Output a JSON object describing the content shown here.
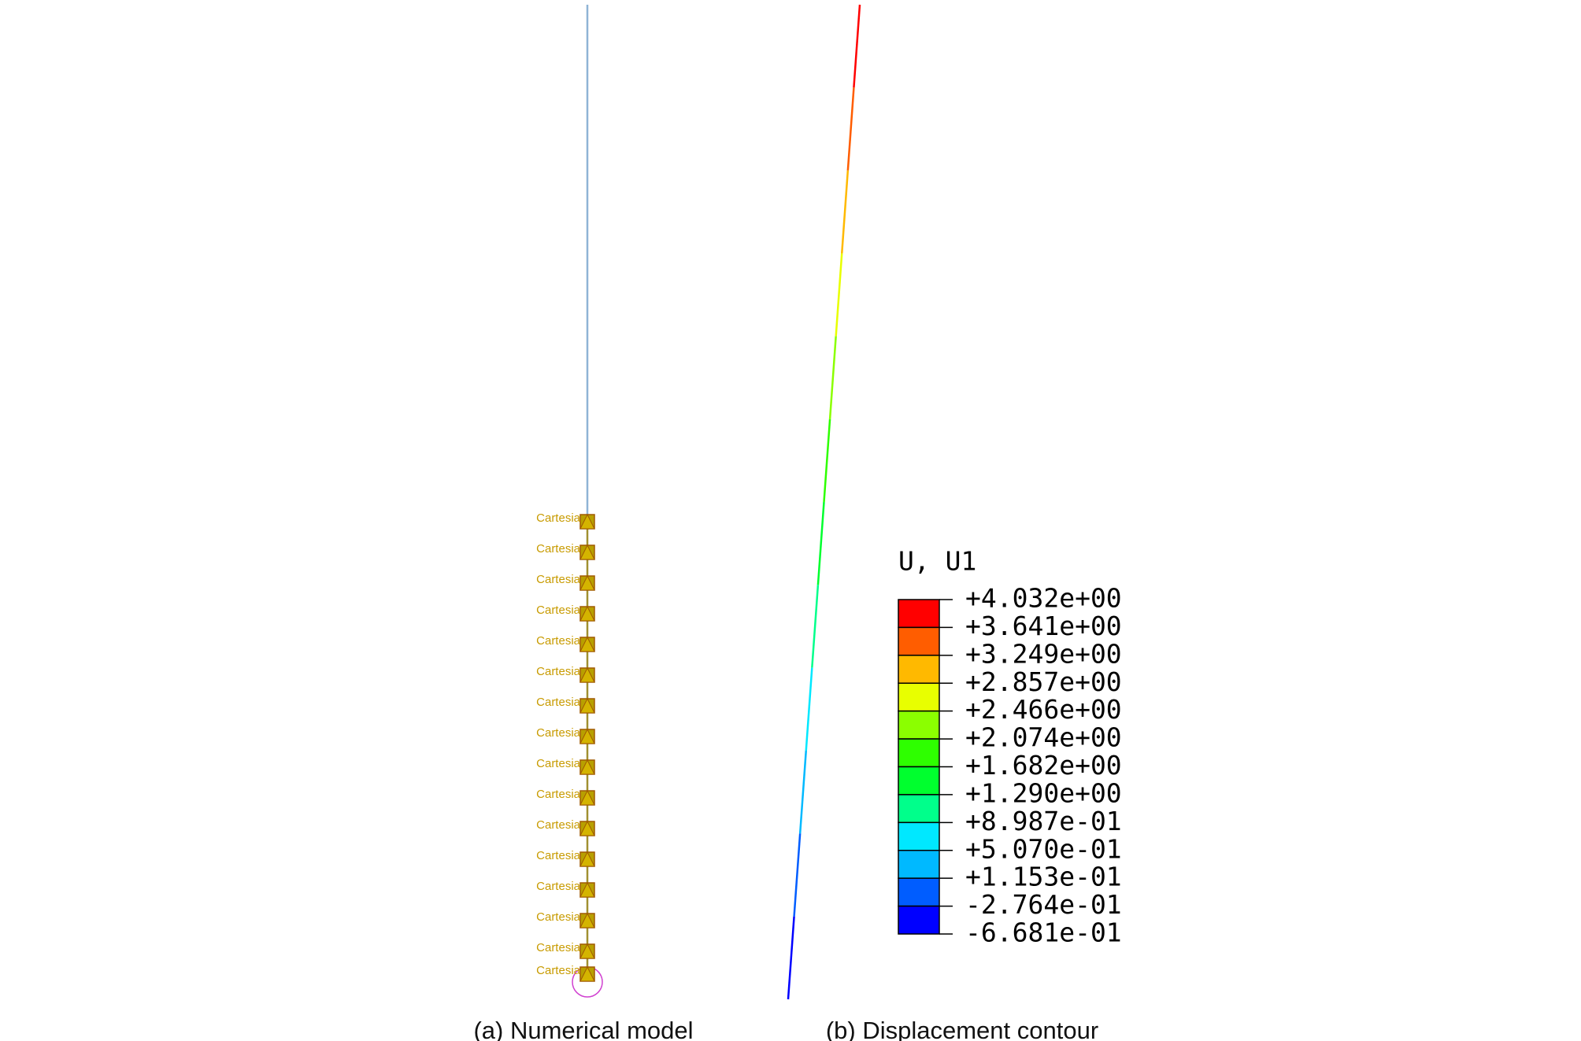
{
  "panel_a": {
    "caption": "(a) Numerical model",
    "node_labels": [
      "Cartesia",
      "Cartesia",
      "Cartesia",
      "Cartesia",
      "Cartesia",
      "Cartesia",
      "Cartesia",
      "Cartesia",
      "Cartesia",
      "Cartesia",
      "Cartesia",
      "Cartesia",
      "Cartesia",
      "Cartesia",
      "Cartesia",
      "Cartesia"
    ]
  },
  "panel_b": {
    "caption": "(b) Displacement contour",
    "legend": {
      "title": "U, U1",
      "labels": [
        "+4.032e+00",
        "+3.641e+00",
        "+3.249e+00",
        "+2.857e+00",
        "+2.466e+00",
        "+2.074e+00",
        "+1.682e+00",
        "+1.290e+00",
        "+8.987e-01",
        "+5.070e-01",
        "+1.153e-01",
        "-2.764e-01",
        "-6.681e-01"
      ],
      "colors": [
        "#ff0000",
        "#ff5d00",
        "#ffb900",
        "#e8ff00",
        "#8bff00",
        "#2eff00",
        "#00ff2e",
        "#00ff8b",
        "#00e8ff",
        "#00b9ff",
        "#005dff",
        "#0000ff"
      ]
    }
  }
}
